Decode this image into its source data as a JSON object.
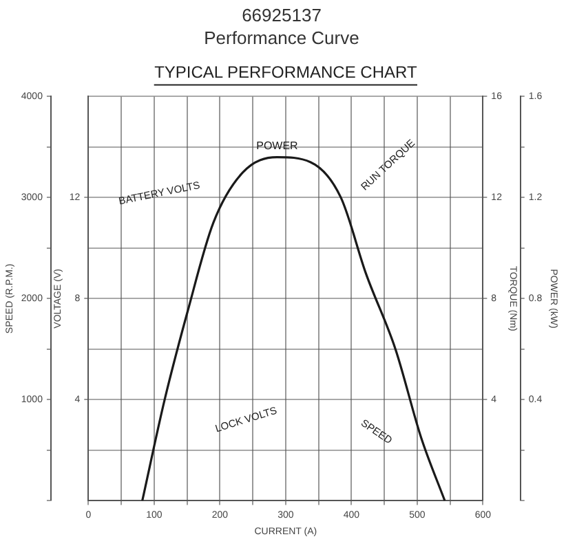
{
  "chart_data": {
    "type": "line",
    "title": "66925137",
    "subtitle": "Performance Curve",
    "xlabel": "CURRENT (A)",
    "ylabel": "POWER (kW)",
    "y2label": "SPEED (R.P.M.)",
    "y3label": "TORQUE (Nm)",
    "xlim": [
      0,
      600
    ],
    "xticks": [
      0,
      {
        "value": 50,
        "label": null
      },
      100,
      {
        "value": 150,
        "label": null
      },
      200,
      {
        "value": 250,
        "label": null
      },
      300,
      {
        "value": 350,
        "label": null
      },
      400,
      {
        "value": 450,
        "label": null
      },
      500,
      {
        "value": 550,
        "label": null
      },
      600
    ],
    "ylim": [
      0,
      1.6
    ],
    "yticks": [
      {
        "value": 0,
        "label": null
      },
      {
        "value": 0.2,
        "label": null
      },
      0.4,
      {
        "value": 0.6,
        "label": null
      },
      0.8,
      {
        "value": 1,
        "label": null
      },
      1.2,
      {
        "value": 1.4,
        "label": null
      },
      1.6
    ],
    "y2lim": [
      0,
      4000
    ],
    "y2ticks": [
      {
        "value": 0,
        "label": null
      },
      {
        "value": 500,
        "label": null
      },
      1000,
      {
        "value": 1500,
        "label": null
      },
      2000,
      {
        "value": 2500,
        "label": null
      },
      3000,
      {
        "value": 3500,
        "label": null
      },
      4000
    ],
    "y3lim": [
      0,
      16
    ],
    "y3ticks": [
      4,
      8,
      12,
      16
    ],
    "grid": true,
    "legend": false,
    "marker": "none",
    "line_style": "solid",
    "series": [
      {
        "name": "POWER",
        "color": "#1a1a1a",
        "x": [
          82,
          116,
          151,
          190,
          235,
          287,
          338,
          384,
          422,
          467,
          506,
          542
        ],
        "values": [
          0,
          0.4,
          0.75,
          1.1,
          1.3,
          1.36,
          1.34,
          1.2,
          0.9,
          0.6,
          0.25,
          0
        ]
      }
    ],
    "annotations": [
      "TYPICAL PERFORMANCE CHART",
      "BATTERY VOLTS",
      "RUN TORQUE",
      "LOCK VOLTS",
      "SPEED",
      "VOLTAGE (V)",
      "4",
      "8",
      "12"
    ]
  }
}
